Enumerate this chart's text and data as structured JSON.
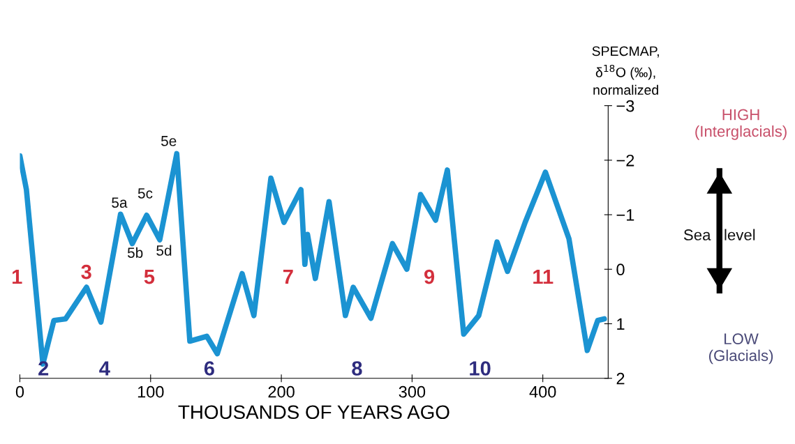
{
  "chart_data": {
    "type": "line",
    "xlabel": "THOUSANDS OF YEARS AGO",
    "ylabel": "SPECMAP,\nδ$^{18}$O (‰),\nnormalized",
    "xlim": [
      0,
      450
    ],
    "xticks": [
      0,
      100,
      200,
      300,
      400
    ],
    "ylim": [
      2,
      -3
    ],
    "yticks": [
      {
        "value": -3,
        "label": "−3"
      },
      {
        "value": -2,
        "label": "−2"
      },
      {
        "value": -1,
        "label": "−1"
      },
      0,
      1,
      2
    ],
    "grid": false,
    "legend": false,
    "marker": "none",
    "line_style": "solid",
    "series": [
      {
        "color": "#1b93d2",
        "x": [
          0,
          5,
          17.6,
          26,
          35,
          51,
          62,
          77,
          86,
          97,
          107,
          120,
          130,
          143,
          151,
          170,
          179,
          192,
          202,
          215,
          218,
          220,
          226,
          236.5,
          249,
          255,
          268.5,
          285,
          296,
          306.5,
          318,
          327,
          339.5,
          351,
          365,
          373,
          386.5,
          402,
          420,
          434,
          442,
          447
        ],
        "values": [
          -2.08,
          -1.46,
          1.74,
          0.94,
          0.91,
          0.33,
          0.97,
          -1.01,
          -0.47,
          -0.99,
          -0.54,
          -2.12,
          1.32,
          1.23,
          1.55,
          0.08,
          0.85,
          -1.67,
          -0.86,
          -1.46,
          -0.09,
          -0.64,
          0.17,
          -1.24,
          0.85,
          0.33,
          0.9,
          -0.47,
          0.0,
          -1.37,
          -0.9,
          -1.82,
          1.19,
          0.85,
          -0.5,
          0.04,
          -0.86,
          -1.78,
          -0.56,
          1.49,
          0.94,
          0.91
        ]
      }
    ],
    "annotations": [
      "1",
      "2",
      "3",
      "4",
      "5",
      "6",
      "7",
      "8",
      "9",
      "10",
      "11",
      "5a",
      "5b",
      "5c",
      "5d",
      "5e",
      "HIGH\n(Interglacials)",
      "Sea   level",
      "LOW\n(Glacials)"
    ]
  }
}
